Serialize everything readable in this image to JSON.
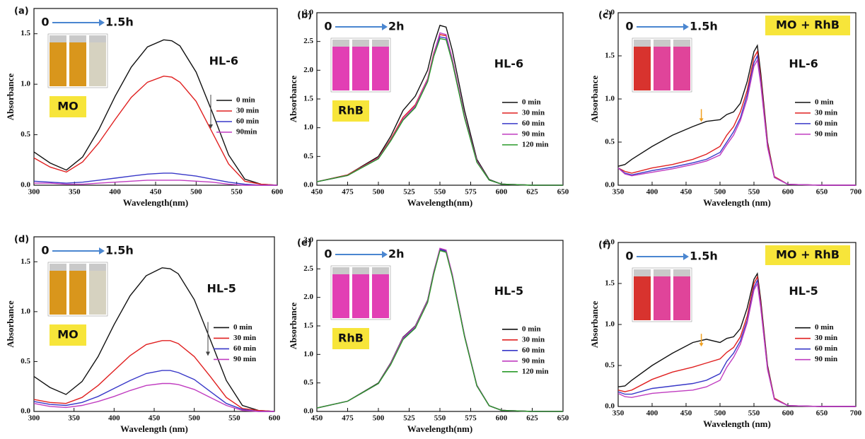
{
  "chart_data": [
    {
      "type": "line",
      "x_label": "Wavelength(nm)",
      "y_label": "Absorbance",
      "annotations": {
        "panel": "(a)",
        "start": "0",
        "end": "1.5h",
        "sample": "HL-6",
        "dye": "MO"
      },
      "x": [
        300,
        320,
        340,
        360,
        380,
        400,
        420,
        440,
        460,
        470,
        480,
        500,
        520,
        540,
        560,
        580,
        600
      ],
      "xlim": [
        300,
        600
      ],
      "xticks": [
        300,
        350,
        400,
        450,
        500,
        550,
        600
      ],
      "ylim": [
        0,
        1.75
      ],
      "yticks": [
        {
          "value": 0,
          "label": "0.0"
        },
        0.5,
        {
          "value": 1,
          "label": "1.0"
        },
        1.5
      ],
      "legend": "center right",
      "series": [
        {
          "name": "0 min",
          "color": "#111111",
          "values": [
            0.33,
            0.22,
            0.15,
            0.28,
            0.55,
            0.88,
            1.17,
            1.37,
            1.44,
            1.43,
            1.38,
            1.12,
            0.72,
            0.3,
            0.06,
            0.01,
            0
          ]
        },
        {
          "name": "30 min",
          "color": "#e02020",
          "values": [
            0.27,
            0.18,
            0.13,
            0.23,
            0.42,
            0.65,
            0.87,
            1.02,
            1.08,
            1.07,
            1.02,
            0.83,
            0.52,
            0.21,
            0.04,
            0.01,
            0
          ]
        },
        {
          "name": "60 min",
          "color": "#3838c8",
          "values": [
            0.04,
            0.03,
            0.02,
            0.03,
            0.05,
            0.07,
            0.09,
            0.11,
            0.12,
            0.12,
            0.11,
            0.09,
            0.06,
            0.03,
            0.01,
            0,
            0
          ]
        },
        {
          "name": "90min",
          "color": "#c03cc0",
          "values": [
            0.02,
            0.02,
            0.01,
            0.01,
            0.02,
            0.03,
            0.04,
            0.05,
            0.05,
            0.05,
            0.05,
            0.04,
            0.03,
            0.01,
            0,
            0,
            0
          ]
        }
      ]
    },
    {
      "type": "line",
      "x_label": "Wavelength(nm)",
      "y_label": "Absorbance",
      "annotations": {
        "panel": "(b)",
        "start": "0",
        "end": "2h",
        "sample": "HL-6",
        "dye": "RhB"
      },
      "x": [
        450,
        475,
        500,
        510,
        520,
        530,
        540,
        545,
        550,
        555,
        560,
        570,
        580,
        590,
        600,
        625,
        650
      ],
      "xlim": [
        450,
        650
      ],
      "xticks": [
        450,
        475,
        500,
        525,
        550,
        575,
        600,
        625,
        650
      ],
      "ylim": [
        0,
        3
      ],
      "yticks": [
        {
          "value": 0,
          "label": "0.0"
        },
        0.5,
        {
          "value": 1,
          "label": "1.0"
        },
        1.5,
        {
          "value": 2,
          "label": "2.0"
        },
        2.5,
        {
          "value": 3,
          "label": "3.0"
        }
      ],
      "legend": "center right",
      "series": [
        {
          "name": "0 min",
          "color": "#111111",
          "values": [
            0.06,
            0.18,
            0.5,
            0.85,
            1.3,
            1.55,
            2.0,
            2.45,
            2.78,
            2.75,
            2.35,
            1.3,
            0.45,
            0.1,
            0.02,
            0,
            0
          ]
        },
        {
          "name": "30 min",
          "color": "#e02020",
          "values": [
            0.06,
            0.18,
            0.48,
            0.8,
            1.18,
            1.4,
            1.85,
            2.3,
            2.62,
            2.6,
            2.2,
            1.2,
            0.42,
            0.09,
            0.02,
            0,
            0
          ]
        },
        {
          "name": "60 min",
          "color": "#3838c8",
          "values": [
            0.06,
            0.17,
            0.47,
            0.78,
            1.14,
            1.36,
            1.82,
            2.26,
            2.58,
            2.56,
            2.16,
            1.18,
            0.41,
            0.09,
            0.02,
            0,
            0
          ]
        },
        {
          "name": "90 min",
          "color": "#c03cc0",
          "values": [
            0.06,
            0.17,
            0.47,
            0.78,
            1.15,
            1.38,
            1.84,
            2.28,
            2.65,
            2.62,
            2.2,
            1.2,
            0.42,
            0.09,
            0.02,
            0,
            0
          ]
        },
        {
          "name": "120 min",
          "color": "#2a9a2a",
          "values": [
            0.06,
            0.17,
            0.46,
            0.77,
            1.13,
            1.35,
            1.8,
            2.24,
            2.55,
            2.53,
            2.14,
            1.17,
            0.4,
            0.09,
            0.02,
            0,
            0
          ]
        }
      ]
    },
    {
      "type": "line",
      "x_label": "Wavelength (nm)",
      "y_label": "Absorbance",
      "annotations": {
        "panel": "(c)",
        "start": "0",
        "end": "1.5h",
        "sample": "HL-6",
        "dye": "MO + RhB"
      },
      "x": [
        350,
        360,
        370,
        400,
        430,
        460,
        480,
        500,
        510,
        520,
        530,
        540,
        550,
        555,
        560,
        570,
        580,
        600,
        650,
        700
      ],
      "xlim": [
        350,
        700
      ],
      "xticks": [
        350,
        400,
        450,
        500,
        550,
        600,
        650,
        700
      ],
      "ylim": [
        0,
        2
      ],
      "yticks": [
        {
          "value": 0,
          "label": "0.0"
        },
        0.5,
        {
          "value": 1,
          "label": "1.0"
        },
        1.5,
        {
          "value": 2,
          "label": "2.0"
        }
      ],
      "legend": "center right",
      "series": [
        {
          "name": "0 min",
          "color": "#111111",
          "values": [
            0.22,
            0.24,
            0.3,
            0.45,
            0.58,
            0.68,
            0.74,
            0.76,
            0.82,
            0.85,
            0.95,
            1.2,
            1.55,
            1.62,
            1.3,
            0.5,
            0.1,
            0.01,
            0,
            0
          ]
        },
        {
          "name": "30 min",
          "color": "#e02020",
          "values": [
            0.2,
            0.16,
            0.14,
            0.2,
            0.24,
            0.3,
            0.36,
            0.45,
            0.58,
            0.68,
            0.85,
            1.1,
            1.48,
            1.55,
            1.25,
            0.48,
            0.1,
            0.01,
            0,
            0
          ]
        },
        {
          "name": "60 min",
          "color": "#3838c8",
          "values": [
            0.2,
            0.14,
            0.12,
            0.17,
            0.21,
            0.26,
            0.3,
            0.38,
            0.5,
            0.62,
            0.78,
            1.05,
            1.42,
            1.5,
            1.2,
            0.45,
            0.09,
            0.01,
            0,
            0
          ]
        },
        {
          "name": "90 min",
          "color": "#c03cc0",
          "values": [
            0.2,
            0.13,
            0.11,
            0.15,
            0.19,
            0.24,
            0.28,
            0.35,
            0.47,
            0.58,
            0.75,
            1.0,
            1.38,
            1.45,
            1.17,
            0.44,
            0.09,
            0.01,
            0,
            0
          ]
        }
      ]
    },
    {
      "type": "line",
      "x_label": "Wavelength (nm)",
      "y_label": "Absorbance",
      "annotations": {
        "panel": "(d)",
        "start": "0",
        "end": "1.5h",
        "sample": "HL-5",
        "dye": "MO"
      },
      "x": [
        300,
        320,
        340,
        360,
        380,
        400,
        420,
        440,
        460,
        470,
        480,
        500,
        520,
        540,
        560,
        580,
        600
      ],
      "xlim": [
        300,
        600
      ],
      "xticks": [
        300,
        350,
        400,
        450,
        500,
        550,
        600
      ],
      "ylim": [
        0,
        1.75
      ],
      "yticks": [
        {
          "value": 0,
          "label": "0.0"
        },
        0.5,
        {
          "value": 1,
          "label": "1.0"
        },
        1.5
      ],
      "legend": "center right",
      "series": [
        {
          "name": "0 min",
          "color": "#111111",
          "values": [
            0.35,
            0.24,
            0.17,
            0.3,
            0.55,
            0.87,
            1.16,
            1.36,
            1.44,
            1.43,
            1.38,
            1.12,
            0.72,
            0.31,
            0.06,
            0.01,
            0
          ]
        },
        {
          "name": "30 min",
          "color": "#e02020",
          "values": [
            0.12,
            0.09,
            0.08,
            0.14,
            0.26,
            0.41,
            0.56,
            0.67,
            0.71,
            0.71,
            0.68,
            0.55,
            0.35,
            0.14,
            0.03,
            0.01,
            0
          ]
        },
        {
          "name": "60 min",
          "color": "#3838c8",
          "values": [
            0.1,
            0.07,
            0.06,
            0.09,
            0.15,
            0.23,
            0.31,
            0.38,
            0.41,
            0.41,
            0.39,
            0.32,
            0.2,
            0.08,
            0.02,
            0,
            0
          ]
        },
        {
          "name": "90 min",
          "color": "#c03cc0",
          "values": [
            0.08,
            0.05,
            0.04,
            0.06,
            0.1,
            0.15,
            0.21,
            0.26,
            0.28,
            0.28,
            0.27,
            0.22,
            0.14,
            0.06,
            0.01,
            0,
            0
          ]
        }
      ]
    },
    {
      "type": "line",
      "x_label": "Wavelength(nm)",
      "y_label": "Absorbance",
      "annotations": {
        "panel": "(e)",
        "start": "0",
        "end": "2h",
        "sample": "HL-5",
        "dye": "RhB"
      },
      "x": [
        450,
        475,
        500,
        510,
        520,
        530,
        540,
        545,
        550,
        555,
        560,
        570,
        580,
        590,
        600,
        625,
        650
      ],
      "xlim": [
        450,
        650
      ],
      "xticks": [
        450,
        475,
        500,
        525,
        550,
        575,
        600,
        625,
        650
      ],
      "ylim": [
        0,
        3
      ],
      "yticks": [
        {
          "value": 0,
          "label": "0.0"
        },
        0.5,
        {
          "value": 1,
          "label": "1.0"
        },
        1.5,
        {
          "value": 2,
          "label": "2.0"
        },
        2.5,
        {
          "value": 3,
          "label": "3.0"
        }
      ],
      "legend": "center right",
      "series": [
        {
          "name": "0 min",
          "color": "#111111",
          "values": [
            0.06,
            0.18,
            0.5,
            0.85,
            1.3,
            1.5,
            1.95,
            2.45,
            2.85,
            2.82,
            2.4,
            1.33,
            0.46,
            0.1,
            0.02,
            0,
            0
          ]
        },
        {
          "name": "30 min",
          "color": "#e02020",
          "values": [
            0.06,
            0.18,
            0.49,
            0.83,
            1.27,
            1.47,
            1.92,
            2.42,
            2.83,
            2.8,
            2.38,
            1.32,
            0.45,
            0.1,
            0.02,
            0,
            0
          ]
        },
        {
          "name": "60 min",
          "color": "#3838c8",
          "values": [
            0.06,
            0.18,
            0.49,
            0.83,
            1.28,
            1.48,
            1.93,
            2.43,
            2.84,
            2.81,
            2.39,
            1.32,
            0.45,
            0.1,
            0.02,
            0,
            0
          ]
        },
        {
          "name": "90 min",
          "color": "#c03cc0",
          "values": [
            0.06,
            0.18,
            0.49,
            0.84,
            1.29,
            1.49,
            1.94,
            2.44,
            2.86,
            2.83,
            2.41,
            1.33,
            0.46,
            0.1,
            0.02,
            0,
            0
          ]
        },
        {
          "name": "120 min",
          "color": "#2a9a2a",
          "values": [
            0.06,
            0.18,
            0.49,
            0.82,
            1.26,
            1.46,
            1.91,
            2.41,
            2.82,
            2.79,
            2.37,
            1.31,
            0.45,
            0.1,
            0.02,
            0,
            0
          ]
        }
      ]
    },
    {
      "type": "line",
      "x_label": "Wavelength (nm)",
      "y_label": "Absorbance",
      "annotations": {
        "panel": "(f)",
        "start": "0",
        "end": "1.5h",
        "sample": "HL-5",
        "dye": "MO + RhB"
      },
      "x": [
        350,
        360,
        370,
        400,
        430,
        460,
        480,
        500,
        510,
        520,
        530,
        540,
        550,
        555,
        560,
        570,
        580,
        600,
        650,
        700
      ],
      "xlim": [
        350,
        700
      ],
      "xticks": [
        350,
        400,
        450,
        500,
        550,
        600,
        650,
        700
      ],
      "ylim": [
        0,
        2
      ],
      "yticks": [
        {
          "value": 0,
          "label": "0.0"
        },
        0.5,
        {
          "value": 1,
          "label": "1.0"
        },
        1.5,
        {
          "value": 2,
          "label": "2.0"
        }
      ],
      "legend": "center right",
      "series": [
        {
          "name": "0 min",
          "color": "#111111",
          "values": [
            0.24,
            0.25,
            0.32,
            0.5,
            0.65,
            0.78,
            0.82,
            0.78,
            0.83,
            0.85,
            0.95,
            1.2,
            1.55,
            1.62,
            1.3,
            0.5,
            0.1,
            0.01,
            0,
            0
          ]
        },
        {
          "name": "30 min",
          "color": "#e02020",
          "values": [
            0.2,
            0.18,
            0.2,
            0.33,
            0.42,
            0.48,
            0.53,
            0.58,
            0.66,
            0.72,
            0.85,
            1.1,
            1.5,
            1.58,
            1.26,
            0.48,
            0.1,
            0.01,
            0,
            0
          ]
        },
        {
          "name": "60 min",
          "color": "#3838c8",
          "values": [
            0.18,
            0.15,
            0.15,
            0.22,
            0.25,
            0.28,
            0.32,
            0.4,
            0.55,
            0.65,
            0.8,
            1.05,
            1.45,
            1.54,
            1.22,
            0.46,
            0.09,
            0.01,
            0,
            0
          ]
        },
        {
          "name": "90 min",
          "color": "#c03cc0",
          "values": [
            0.16,
            0.12,
            0.11,
            0.16,
            0.18,
            0.2,
            0.24,
            0.32,
            0.48,
            0.6,
            0.76,
            1.02,
            1.42,
            1.5,
            1.2,
            0.45,
            0.09,
            0.01,
            0,
            0
          ]
        }
      ]
    }
  ]
}
